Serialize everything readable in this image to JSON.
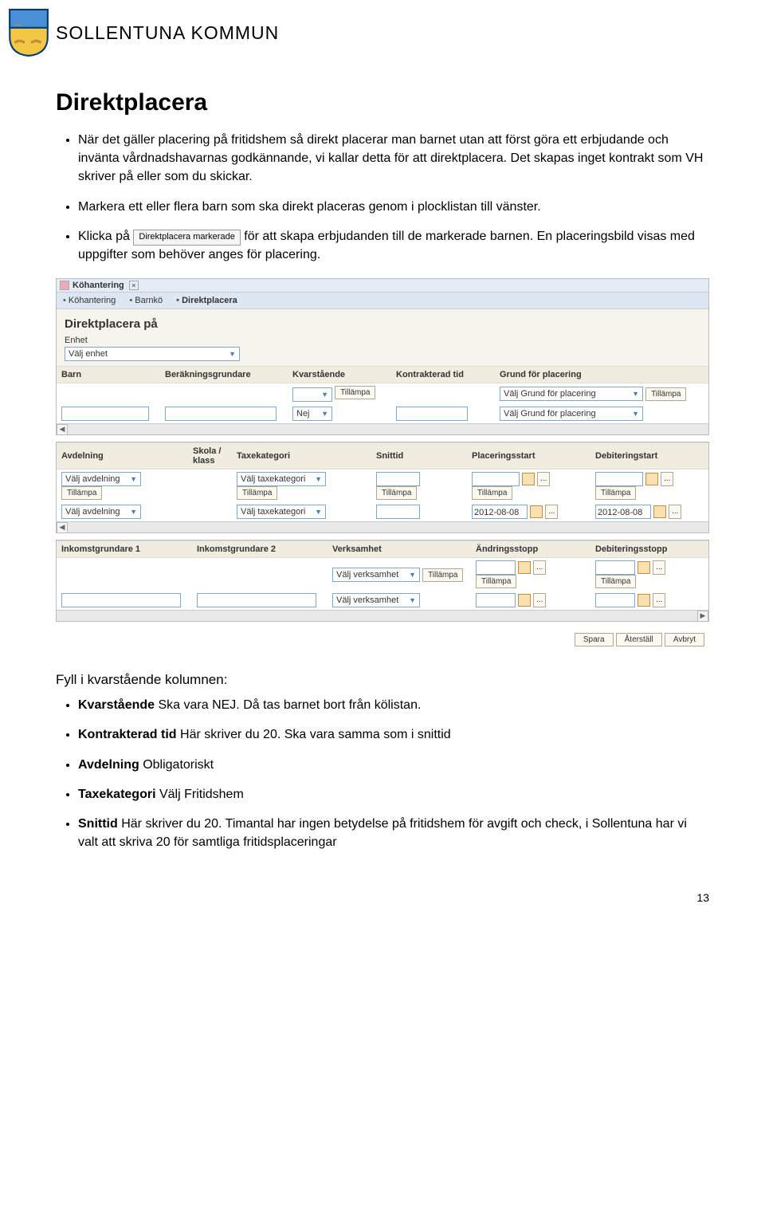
{
  "header": {
    "kommun_name": "SOLLENTUNA KOMMUN",
    "shield_colors": {
      "top": "#4b8fd6",
      "bottom": "#f2c744",
      "border": "#003a7a"
    }
  },
  "doc": {
    "title": "Direktplacera",
    "bullets_top": [
      "När det gäller placering på fritidshem så direkt placerar man barnet utan att först göra ett erbjudande och invänta vårdnadshavarnas godkännande, vi kallar detta för att direktplacera. Det skapas inget kontrakt som VH skriver på eller som du skickar.",
      "Markera ett eller flera barn som ska direkt placeras genom i plocklistan till vänster."
    ],
    "bullet_klicka_pre": "Klicka på ",
    "bullet_klicka_btn": "Direktplacera markerade",
    "bullet_klicka_post": " för att skapa erbjudanden till de markerade barnen. En placeringsbild visas med uppgifter som behöver anges för placering.",
    "sub_head": "Fyll i kvarstående kolumnen:",
    "bullets_bottom_html": [
      "<span class='b'>Kvarstående</span> Ska vara NEJ. Då tas barnet bort från kölistan.",
      "<span class='b'>Kontrakterad tid</span> Här skriver du 20. Ska vara samma som i snittid",
      "<span class='b'>Avdelning</span> Obligatoriskt",
      "<span class='b'>Taxekategori</span> Välj Fritidshem",
      "<span class='b'>Snittid</span> Här skriver du 20. Timantal har ingen betydelse på fritidshem för avgift och check, i Sollentuna har vi valt att skriva 20 för samtliga fritidsplaceringar"
    ],
    "page_number": "13"
  },
  "screenshot": {
    "tab_title": "Köhantering",
    "breadcrumbs": [
      "Köhantering",
      "Barnkö",
      "Direktplacera"
    ],
    "form_title": "Direktplacera på",
    "enhet_label": "Enhet",
    "enhet_value": "Välj enhet",
    "grid1": {
      "headers": [
        "Barn",
        "Beräkningsgrundare",
        "Kvarstående",
        "Kontrakterad tid",
        "Grund för placering"
      ],
      "tillampa": "Tillämpa",
      "grund_placeholder": "Välj Grund för placering",
      "nej": "Nej"
    },
    "grid2": {
      "headers": [
        "Avdelning",
        "Skola / klass",
        "Taxekategori",
        "Snittid",
        "Placeringsstart",
        "Debiteringstart"
      ],
      "avdelning_placeholder": "Välj avdelning",
      "taxe_placeholder": "Välj taxekategori",
      "tillampa": "Tillämpa",
      "date": "2012-08-08"
    },
    "grid3": {
      "headers": [
        "Inkomstgrundare 1",
        "Inkomstgrundare 2",
        "Verksamhet",
        "Ändringsstopp",
        "Debiteringsstopp"
      ],
      "verksamhet_placeholder": "Välj verksamhet",
      "tillampa": "Tillämpa"
    },
    "actions": {
      "save": "Spara",
      "reset": "Återställ",
      "cancel": "Avbryt"
    }
  }
}
